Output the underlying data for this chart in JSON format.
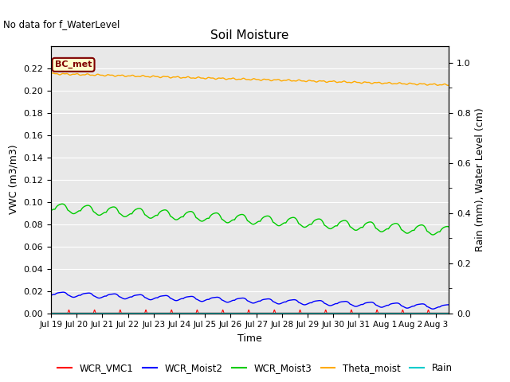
{
  "title": "Soil Moisture",
  "top_left_text": "No data for f_WaterLevel",
  "xlabel": "Time",
  "ylabel_left": "VWC (m3/m3)",
  "ylabel_right": "Rain (mm), Water Level (cm)",
  "ylim_left": [
    0.0,
    0.24
  ],
  "ylim_right": [
    0.0,
    1.0667
  ],
  "yticks_left": [
    0.0,
    0.02,
    0.04,
    0.06,
    0.08,
    0.1,
    0.12,
    0.14,
    0.16,
    0.18,
    0.2,
    0.22
  ],
  "yticks_right": [
    0.0,
    0.2,
    0.4,
    0.6,
    0.8,
    1.0
  ],
  "xtick_labels": [
    "Jul 19",
    "Jul 20",
    "Jul 21",
    "Jul 22",
    "Jul 23",
    "Jul 24",
    "Jul 25",
    "Jul 26",
    "Jul 27",
    "Jul 28",
    "Jul 29",
    "Jul 30",
    "Jul 31",
    "Aug 1",
    "Aug 2",
    "Aug 3"
  ],
  "legend_labels": [
    "WCR_VMC1",
    "WCR_Moist2",
    "WCR_Moist3",
    "Theta_moist",
    "Rain"
  ],
  "legend_colors": [
    "#ff0000",
    "#0000ff",
    "#00cc00",
    "#ffaa00",
    "#00cccc"
  ],
  "bc_met_label": "BC_met",
  "bc_met_color": "#800000",
  "background_color": "#e8e8e8",
  "grid_color": "#ffffff",
  "theta_color": "#ffaa00",
  "moist3_color": "#00cc00",
  "moist2_color": "#0000ff",
  "vmc1_color": "#ff0000",
  "rain_color": "#00cccc"
}
